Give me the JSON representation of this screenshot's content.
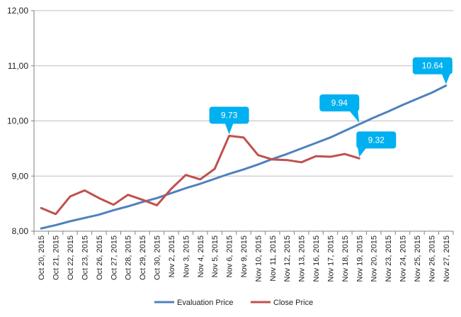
{
  "chart_data": {
    "type": "line",
    "categories": [
      "Oct 20, 2015",
      "Oct 21, 2015",
      "Oct 22, 2015",
      "Oct 23, 2015",
      "Oct 26, 2015",
      "Oct 27, 2015",
      "Oct 28, 2015",
      "Oct 29, 2015",
      "Oct 30, 2015",
      "Nov 2, 2015",
      "Nov 3, 2015",
      "Nov 4, 2015",
      "Nov 5, 2015",
      "Nov 6, 2015",
      "Nov 9, 2015",
      "Nov 10, 2015",
      "Nov 11, 2015",
      "Nov 12, 2015",
      "Nov 13, 2015",
      "Nov 16, 2015",
      "Nov 17, 2015",
      "Nov 18, 2015",
      "Nov 19, 2015",
      "Nov 20, 2015",
      "Nov 23, 2015",
      "Nov 24, 2015",
      "Nov 25, 2015",
      "Nov 26, 2015",
      "Nov 27, 2015"
    ],
    "ylim": [
      8.0,
      12.0
    ],
    "yticks": [
      "8,00",
      "9,00",
      "10,00",
      "11,00",
      "12,00"
    ],
    "ytick_values": [
      8,
      9,
      10,
      11,
      12
    ],
    "grid": true,
    "legend_position": "bottom",
    "series": [
      {
        "name": "Evaluation Price",
        "color": "#4f81bd",
        "values": [
          8.05,
          8.11,
          8.18,
          8.24,
          8.3,
          8.38,
          8.45,
          8.53,
          8.6,
          8.69,
          8.78,
          8.86,
          8.95,
          9.04,
          9.12,
          9.21,
          9.31,
          9.4,
          9.5,
          9.6,
          9.7,
          9.82,
          9.94,
          10.06,
          10.17,
          10.29,
          10.4,
          10.51,
          10.64
        ]
      },
      {
        "name": "Close Price",
        "color": "#c0504d",
        "values": [
          8.42,
          8.31,
          8.63,
          8.74,
          8.6,
          8.48,
          8.66,
          8.57,
          8.47,
          8.77,
          9.02,
          8.94,
          9.13,
          9.73,
          9.7,
          9.38,
          9.3,
          9.29,
          9.25,
          9.36,
          9.35,
          9.4,
          9.32,
          null,
          null,
          null,
          null,
          null,
          null
        ]
      }
    ],
    "callouts": [
      {
        "text": "9.73",
        "series": 1,
        "index": 13
      },
      {
        "text": "9.94",
        "series": 0,
        "index": 22
      },
      {
        "text": "9.32",
        "series": 1,
        "index": 22
      },
      {
        "text": "10.64",
        "series": 0,
        "index": 28
      }
    ],
    "callout_color": "#00b0f0"
  }
}
